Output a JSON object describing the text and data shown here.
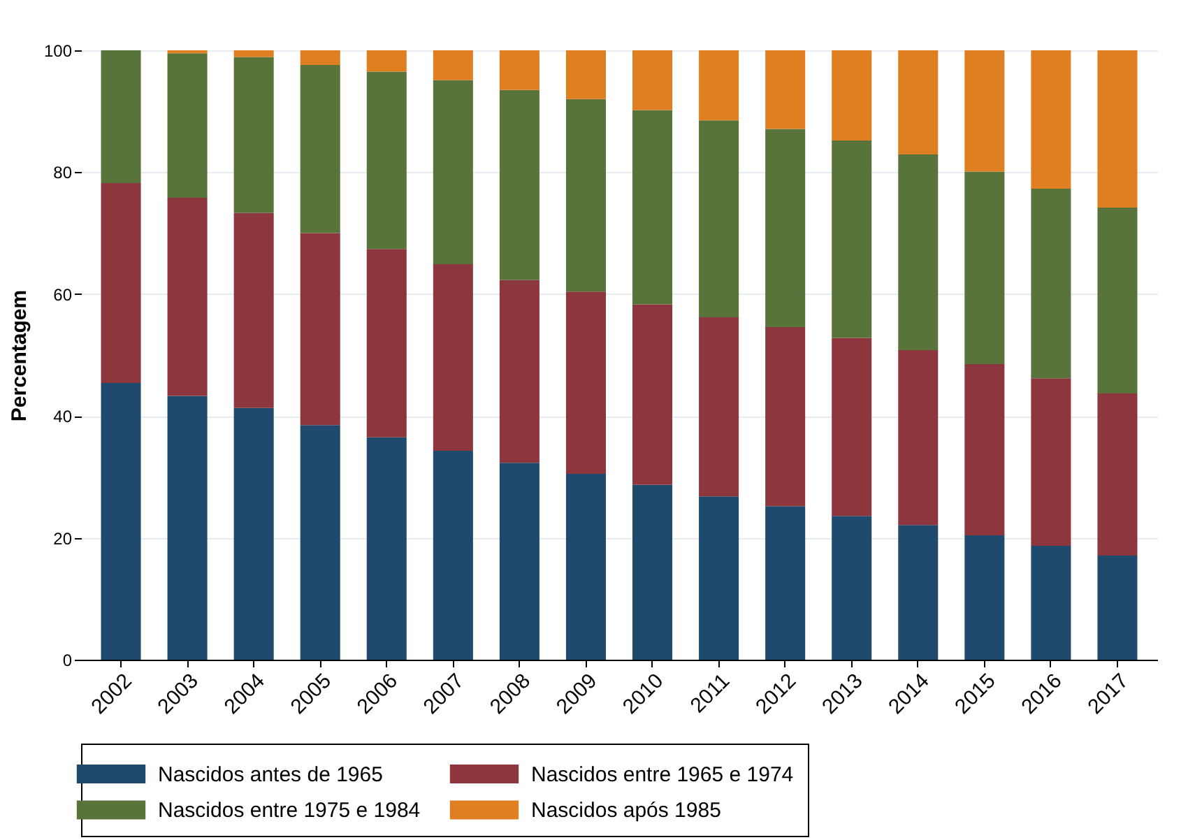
{
  "chart_data": {
    "type": "bar",
    "stacked": true,
    "ylabel": "Percentagem",
    "categories": [
      "2002",
      "2003",
      "2004",
      "2005",
      "2006",
      "2007",
      "2008",
      "2009",
      "2010",
      "2011",
      "2012",
      "2013",
      "2014",
      "2015",
      "2016",
      "2017"
    ],
    "series": [
      {
        "name": "Nascidos antes de 1965",
        "color": "#1f4a6e",
        "values": [
          45.4,
          43.3,
          41.3,
          38.5,
          36.5,
          34.3,
          32.3,
          30.5,
          28.7,
          26.8,
          25.2,
          23.6,
          22.1,
          20.4,
          18.7,
          17.1
        ]
      },
      {
        "name": "Nascidos entre 1965 e 1974",
        "color": "#8e363e",
        "values": [
          32.8,
          32.5,
          32.0,
          31.5,
          30.9,
          30.6,
          30.0,
          29.9,
          29.6,
          29.4,
          29.4,
          29.2,
          28.7,
          28.1,
          27.5,
          26.6
        ]
      },
      {
        "name": "Nascidos entre 1975 e 1984",
        "color": "#58743a",
        "values": [
          21.8,
          23.7,
          25.6,
          27.6,
          29.1,
          30.2,
          31.2,
          31.6,
          31.9,
          32.3,
          32.5,
          32.4,
          32.1,
          31.6,
          31.1,
          30.5
        ]
      },
      {
        "name": "Nascidos após 1985",
        "color": "#e07f22",
        "values": [
          0,
          0.5,
          1.1,
          2.4,
          3.5,
          4.9,
          6.5,
          8.0,
          9.8,
          11.5,
          12.9,
          14.8,
          17.1,
          19.9,
          22.7,
          25.8
        ]
      }
    ],
    "ylim": [
      0,
      100
    ],
    "yticks": [
      0,
      20,
      40,
      60,
      80,
      100
    ],
    "grid": "y",
    "legend": "bottom"
  }
}
